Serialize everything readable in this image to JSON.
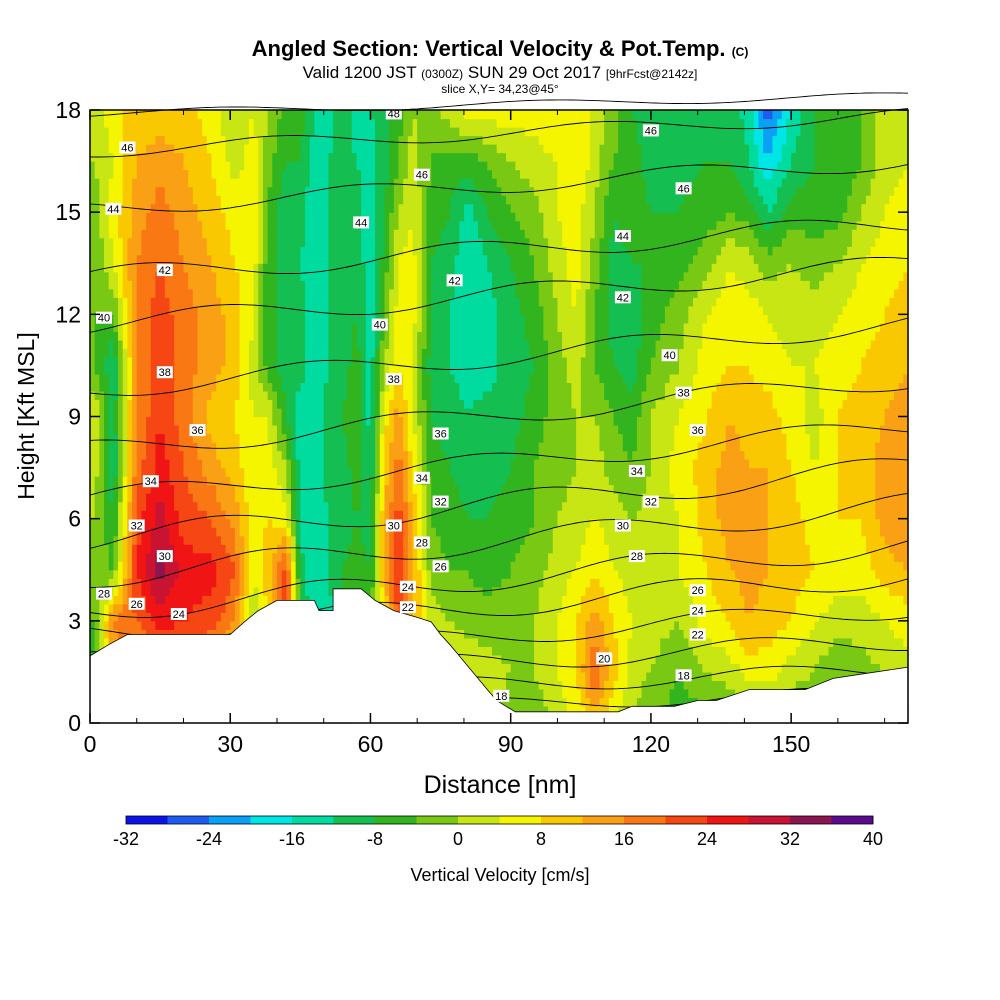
{
  "header": {
    "title": "Angled Section: Vertical Velocity & Pot.Temp.",
    "title_unit": "(C)",
    "valid_prefix": "Valid 1200 JST",
    "valid_zulu": "(0300Z)",
    "valid_date": "SUN 29 Oct 2017",
    "forecast": "[9hrFcst@2142z]",
    "slice": "slice X,Y= 34,23@45°"
  },
  "colors": {
    "palette": [
      "#0a14e6",
      "#1e5cf0",
      "#0aa0f5",
      "#00e6e6",
      "#00dca0",
      "#14be50",
      "#32b41e",
      "#78c814",
      "#c8e614",
      "#f5f500",
      "#fac800",
      "#faa014",
      "#fa7814",
      "#f54614",
      "#f01414",
      "#c81432",
      "#8c1450",
      "#5a0a8c"
    ],
    "contour": "#000000",
    "terrain": "#ffffff"
  },
  "chart_data": {
    "type": "heatmap",
    "xlabel": "Distance [nm]",
    "ylabel": "Height [Kft MSL]",
    "xlim": [
      0,
      175
    ],
    "ylim": [
      0,
      18
    ],
    "xticks": [
      0,
      30,
      60,
      90,
      120,
      150
    ],
    "yticks": [
      0,
      3,
      6,
      9,
      12,
      15,
      18
    ],
    "colorbar": {
      "label": "Vertical Velocity [cm/s]",
      "boundaries": [
        -36,
        -32,
        -28,
        -24,
        -20,
        -16,
        -12,
        -8,
        -4,
        0,
        4,
        8,
        12,
        16,
        20,
        24,
        28,
        32,
        36,
        40
      ],
      "tick_labels": [
        -32,
        -24,
        -16,
        -8,
        0,
        8,
        16,
        24,
        32,
        40
      ]
    },
    "columns": [
      {
        "x": 1,
        "bottom": [
          -6,
          -6,
          -4,
          -2,
          0,
          2,
          4
        ],
        "top": [
          -6,
          -4,
          -4,
          -4,
          -2,
          0,
          2
        ]
      },
      {
        "x": 5,
        "bottom": [
          10,
          14,
          16,
          -4,
          -8,
          -12,
          -10
        ],
        "top": [
          -10,
          -12,
          -4,
          4,
          6,
          4,
          6
        ]
      },
      {
        "x": 10,
        "bottom": [
          4,
          12,
          20,
          24,
          22,
          18,
          16
        ],
        "top": [
          14,
          16,
          18,
          16,
          14,
          12,
          10
        ]
      },
      {
        "x": 15,
        "bottom": [
          6,
          16,
          26,
          34,
          30,
          26,
          24
        ],
        "top": [
          22,
          22,
          22,
          20,
          18,
          14,
          10
        ]
      },
      {
        "x": 20,
        "bottom": [
          6,
          14,
          24,
          26,
          22,
          20,
          18
        ],
        "top": [
          18,
          18,
          18,
          16,
          14,
          12,
          10
        ]
      },
      {
        "x": 26,
        "bottom": [
          4,
          12,
          22,
          26,
          20,
          14,
          10
        ],
        "top": [
          12,
          14,
          14,
          12,
          10,
          8,
          6
        ]
      },
      {
        "x": 31,
        "bottom": [
          0,
          6,
          16,
          20,
          14,
          10,
          8
        ],
        "top": [
          8,
          10,
          10,
          8,
          6,
          2,
          0
        ]
      },
      {
        "x": 35,
        "bottom": [
          0,
          -4,
          0,
          4,
          6,
          4,
          4
        ],
        "top": [
          2,
          2,
          4,
          6,
          8,
          6,
          4
        ]
      },
      {
        "x": 38,
        "bottom": [
          0,
          2,
          8,
          10,
          8,
          6,
          4
        ],
        "top": [
          4,
          -6,
          -8,
          -6,
          -4,
          -2,
          0
        ]
      },
      {
        "x": 42,
        "bottom": [
          0,
          14,
          24,
          22,
          6,
          0,
          -8
        ],
        "top": [
          -10,
          -10,
          -8,
          -10,
          -12,
          -8,
          -6
        ]
      },
      {
        "x": 45,
        "bottom": [
          0,
          -4,
          -6,
          -10,
          -14,
          -14,
          -16
        ],
        "top": [
          -8,
          -8,
          -10,
          -12,
          -10,
          -8,
          -6
        ]
      },
      {
        "x": 48,
        "bottom": [
          0,
          -14,
          -16,
          -16,
          -16,
          -16,
          -16
        ],
        "top": [
          -16,
          -16,
          -16,
          -16,
          -16,
          -14,
          -12
        ]
      },
      {
        "x": 51,
        "bottom": [
          0,
          -10,
          -14,
          -12,
          -12,
          -10,
          -10
        ],
        "top": [
          -10,
          -12,
          -12,
          -12,
          -12,
          -12,
          -14
        ]
      },
      {
        "x": 54,
        "bottom": [
          -8,
          0,
          -6,
          -8,
          -10,
          -10,
          -8
        ],
        "top": [
          -8,
          -10,
          -10,
          -10,
          -10,
          -10,
          -10
        ]
      },
      {
        "x": 57,
        "bottom": [
          0,
          2,
          -4,
          -6,
          -8,
          -6,
          -4
        ],
        "top": [
          -4,
          -6,
          -8,
          -8,
          -10,
          -12,
          -14
        ]
      },
      {
        "x": 60,
        "bottom": [
          0,
          0,
          -4,
          -8,
          -10,
          -12,
          -14
        ],
        "top": [
          -14,
          -14,
          -16,
          -16,
          -16,
          -14,
          -12
        ]
      },
      {
        "x": 63,
        "bottom": [
          0,
          6,
          8,
          12,
          12,
          10,
          6
        ],
        "top": [
          4,
          0,
          -4,
          -6,
          -8,
          -10,
          -10
        ]
      },
      {
        "x": 66,
        "bottom": [
          0,
          10,
          20,
          26,
          22,
          18,
          14
        ],
        "top": [
          10,
          8,
          6,
          4,
          0,
          -4,
          -6
        ]
      },
      {
        "x": 69,
        "bottom": [
          0,
          6,
          12,
          14,
          12,
          8,
          4
        ],
        "top": [
          4,
          4,
          6,
          6,
          4,
          2,
          0
        ]
      },
      {
        "x": 73,
        "bottom": [
          0,
          2,
          2,
          -2,
          -4,
          -6,
          -8
        ],
        "top": [
          -8,
          -10,
          -8,
          -8,
          -6,
          -4,
          -2
        ]
      },
      {
        "x": 77,
        "bottom": [
          2,
          4,
          0,
          -4,
          -6,
          -8,
          -10
        ],
        "top": [
          -10,
          -12,
          -12,
          -10,
          -8,
          -6,
          2
        ]
      },
      {
        "x": 81,
        "bottom": [
          4,
          4,
          -2,
          -4,
          -8,
          -10,
          -12
        ],
        "top": [
          -12,
          -14,
          -16,
          -16,
          -14,
          -6,
          6
        ]
      },
      {
        "x": 85,
        "bottom": [
          4,
          2,
          -2,
          -6,
          -8,
          -10,
          -10
        ],
        "top": [
          -10,
          -14,
          -14,
          -12,
          -8,
          -4,
          6
        ]
      },
      {
        "x": 90,
        "bottom": [
          -4,
          0,
          -2,
          -4,
          -6,
          -8,
          -10
        ],
        "top": [
          -10,
          -10,
          -10,
          -8,
          -4,
          0,
          6
        ]
      },
      {
        "x": 95,
        "bottom": [
          -4,
          0,
          0,
          -2,
          -4,
          -4,
          -6
        ],
        "top": [
          -6,
          -8,
          -6,
          -4,
          -2,
          2,
          6
        ]
      },
      {
        "x": 100,
        "bottom": [
          2,
          4,
          4,
          2,
          0,
          -2,
          -2
        ],
        "top": [
          -2,
          -2,
          0,
          2,
          4,
          4,
          8
        ]
      },
      {
        "x": 104,
        "bottom": [
          4,
          8,
          8,
          4,
          2,
          0,
          0
        ],
        "top": [
          0,
          2,
          4,
          6,
          6,
          8,
          8
        ]
      },
      {
        "x": 108,
        "bottom": [
          10,
          20,
          14,
          8,
          4,
          2,
          0
        ],
        "top": [
          0,
          -4,
          -4,
          -2,
          0,
          2,
          2
        ]
      },
      {
        "x": 112,
        "bottom": [
          4,
          10,
          8,
          4,
          2,
          -2,
          -4
        ],
        "top": [
          -6,
          -8,
          -10,
          -10,
          -8,
          -4,
          -2
        ]
      },
      {
        "x": 116,
        "bottom": [
          0,
          2,
          4,
          2,
          0,
          -4,
          -6
        ],
        "top": [
          -8,
          -10,
          -10,
          -8,
          -6,
          -6,
          -8
        ]
      },
      {
        "x": 120,
        "bottom": [
          -4,
          0,
          2,
          4,
          2,
          0,
          0
        ],
        "top": [
          -2,
          -4,
          -6,
          -8,
          -8,
          -10,
          -10
        ]
      },
      {
        "x": 126,
        "bottom": [
          -6,
          -4,
          0,
          4,
          4,
          6,
          4
        ],
        "top": [
          2,
          0,
          -2,
          -6,
          -8,
          -10,
          -10
        ]
      },
      {
        "x": 132,
        "bottom": [
          -6,
          0,
          6,
          8,
          10,
          10,
          8
        ],
        "top": [
          8,
          6,
          4,
          -2,
          -6,
          -8,
          -10
        ]
      },
      {
        "x": 137,
        "bottom": [
          -4,
          2,
          8,
          12,
          14,
          14,
          12
        ],
        "top": [
          10,
          8,
          6,
          4,
          -4,
          -8,
          -10
        ]
      },
      {
        "x": 141,
        "bottom": [
          -2,
          6,
          12,
          14,
          14,
          12,
          10
        ],
        "top": [
          10,
          8,
          6,
          2,
          -6,
          -12,
          -14
        ]
      },
      {
        "x": 145,
        "bottom": [
          -4,
          6,
          10,
          12,
          12,
          12,
          10
        ],
        "top": [
          8,
          6,
          4,
          -2,
          -12,
          -20,
          -26
        ]
      },
      {
        "x": 150,
        "bottom": [
          -4,
          2,
          8,
          10,
          10,
          8,
          6
        ],
        "top": [
          6,
          4,
          2,
          0,
          -6,
          -12,
          -16
        ]
      },
      {
        "x": 155,
        "bottom": [
          -6,
          0,
          4,
          8,
          6,
          4,
          2
        ],
        "top": [
          4,
          4,
          2,
          -2,
          -6,
          -8,
          -8
        ]
      },
      {
        "x": 160,
        "bottom": [
          -6,
          -4,
          2,
          6,
          8,
          8,
          8
        ],
        "top": [
          8,
          6,
          4,
          0,
          -6,
          -8,
          -8
        ]
      },
      {
        "x": 165,
        "bottom": [
          -6,
          -2,
          2,
          6,
          8,
          10,
          10
        ],
        "top": [
          10,
          8,
          6,
          4,
          0,
          -4,
          -4
        ]
      },
      {
        "x": 170,
        "bottom": [
          -6,
          0,
          4,
          10,
          14,
          14,
          12
        ],
        "top": [
          12,
          10,
          8,
          6,
          4,
          2,
          2
        ]
      },
      {
        "x": 175,
        "bottom": [
          -6,
          2,
          6,
          12,
          16,
          16,
          14
        ],
        "top": [
          14,
          12,
          10,
          8,
          6,
          4,
          4
        ]
      }
    ],
    "terrain": [
      [
        0,
        1.97
      ],
      [
        4,
        2.3
      ],
      [
        8,
        2.6
      ],
      [
        30,
        2.6
      ],
      [
        33,
        2.97
      ],
      [
        36,
        3.3
      ],
      [
        40,
        3.6
      ],
      [
        48,
        3.6
      ],
      [
        49,
        3.3
      ],
      [
        52,
        3.3
      ],
      [
        52,
        3.94
      ],
      [
        58,
        3.94
      ],
      [
        61,
        3.6
      ],
      [
        65,
        3.3
      ],
      [
        70,
        3.1
      ],
      [
        73,
        2.97
      ],
      [
        75,
        2.6
      ],
      [
        77,
        2.3
      ],
      [
        79,
        1.97
      ],
      [
        81,
        1.64
      ],
      [
        83,
        1.31
      ],
      [
        85,
        0.98
      ],
      [
        87,
        0.66
      ],
      [
        89,
        0.49
      ],
      [
        91,
        0.33
      ],
      [
        113,
        0.33
      ],
      [
        116,
        0.49
      ],
      [
        125,
        0.49
      ],
      [
        130,
        0.66
      ],
      [
        134,
        0.66
      ],
      [
        141,
        0.98
      ],
      [
        153,
        0.98
      ],
      [
        159,
        1.31
      ],
      [
        175,
        1.64
      ]
    ],
    "isentropes": [
      {
        "label": "18",
        "y0": 0.2,
        "slope": 0.004,
        "amp": 0.2
      },
      {
        "label": "20",
        "y0": 0.75,
        "slope": 0.0045,
        "amp": 0.25
      },
      {
        "label": "22",
        "y0": 1.2,
        "slope": 0.007,
        "amp": 0.3
      },
      {
        "label": "24",
        "y0": 1.8,
        "slope": 0.009,
        "amp": 0.3
      },
      {
        "label": "26",
        "y0": 2.6,
        "slope": 0.01,
        "amp": 0.35
      },
      {
        "label": "28",
        "y0": 3.3,
        "slope": 0.011,
        "amp": 0.35
      },
      {
        "label": "30",
        "y0": 4.3,
        "slope": 0.012,
        "amp": 0.35
      },
      {
        "label": "32",
        "y0": 5.4,
        "slope": 0.012,
        "amp": 0.35
      },
      {
        "label": "34",
        "y0": 6.6,
        "slope": 0.012,
        "amp": 0.3
      },
      {
        "label": "36",
        "y0": 8.0,
        "slope": 0.012,
        "amp": 0.3
      },
      {
        "label": "38",
        "y0": 9.8,
        "slope": 0.011,
        "amp": 0.3
      },
      {
        "label": "40",
        "y0": 11.7,
        "slope": 0.01,
        "amp": 0.3
      },
      {
        "label": "42",
        "y0": 13.1,
        "slope": 0.009,
        "amp": 0.3
      },
      {
        "label": "44",
        "y0": 15.1,
        "slope": 0.008,
        "amp": 0.25
      },
      {
        "label": "46",
        "y0": 16.8,
        "slope": 0.006,
        "amp": 0.2
      },
      {
        "label": "48",
        "y0": 17.9,
        "slope": 0.003,
        "amp": 0.1
      }
    ],
    "contour_labels": [
      {
        "text": "46",
        "x": 8,
        "y": 16.9
      },
      {
        "text": "44",
        "x": 5,
        "y": 15.1
      },
      {
        "text": "42",
        "x": 16,
        "y": 13.3
      },
      {
        "text": "40",
        "x": 3,
        "y": 11.9
      },
      {
        "text": "38",
        "x": 16,
        "y": 10.3
      },
      {
        "text": "36",
        "x": 23,
        "y": 8.6
      },
      {
        "text": "34",
        "x": 13,
        "y": 7.1
      },
      {
        "text": "32",
        "x": 10,
        "y": 5.8
      },
      {
        "text": "30",
        "x": 16,
        "y": 4.9
      },
      {
        "text": "28",
        "x": 3,
        "y": 3.8
      },
      {
        "text": "26",
        "x": 10,
        "y": 3.5
      },
      {
        "text": "24",
        "x": 19,
        "y": 3.2
      },
      {
        "text": "48",
        "x": 65,
        "y": 17.9
      },
      {
        "text": "46",
        "x": 71,
        "y": 16.1
      },
      {
        "text": "44",
        "x": 58,
        "y": 14.7
      },
      {
        "text": "42",
        "x": 78,
        "y": 13.0
      },
      {
        "text": "40",
        "x": 62,
        "y": 11.7
      },
      {
        "text": "38",
        "x": 65,
        "y": 10.1
      },
      {
        "text": "36",
        "x": 75,
        "y": 8.5
      },
      {
        "text": "34",
        "x": 71,
        "y": 7.2
      },
      {
        "text": "32",
        "x": 75,
        "y": 6.5
      },
      {
        "text": "30",
        "x": 65,
        "y": 5.8
      },
      {
        "text": "28",
        "x": 71,
        "y": 5.3
      },
      {
        "text": "26",
        "x": 75,
        "y": 4.6
      },
      {
        "text": "24",
        "x": 68,
        "y": 4.0
      },
      {
        "text": "22",
        "x": 68,
        "y": 3.4
      },
      {
        "text": "18",
        "x": 88,
        "y": 0.8
      },
      {
        "text": "46",
        "x": 120,
        "y": 17.4
      },
      {
        "text": "46",
        "x": 127,
        "y": 15.7
      },
      {
        "text": "44",
        "x": 114,
        "y": 14.3
      },
      {
        "text": "42",
        "x": 114,
        "y": 12.5
      },
      {
        "text": "40",
        "x": 124,
        "y": 10.8
      },
      {
        "text": "38",
        "x": 127,
        "y": 9.7
      },
      {
        "text": "36",
        "x": 130,
        "y": 8.6
      },
      {
        "text": "34",
        "x": 117,
        "y": 7.4
      },
      {
        "text": "32",
        "x": 120,
        "y": 6.5
      },
      {
        "text": "30",
        "x": 114,
        "y": 5.8
      },
      {
        "text": "28",
        "x": 117,
        "y": 4.9
      },
      {
        "text": "26",
        "x": 130,
        "y": 3.9
      },
      {
        "text": "24",
        "x": 130,
        "y": 3.3
      },
      {
        "text": "22",
        "x": 130,
        "y": 2.6
      },
      {
        "text": "20",
        "x": 110,
        "y": 1.9
      },
      {
        "text": "18",
        "x": 127,
        "y": 1.4
      }
    ]
  }
}
